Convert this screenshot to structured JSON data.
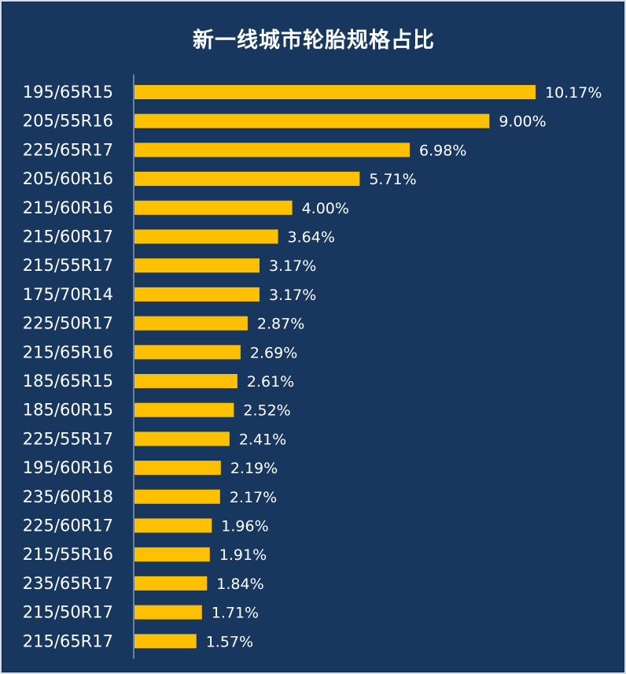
{
  "chart_data": {
    "type": "bar",
    "orientation": "horizontal",
    "title": "新一线城市轮胎规格占比",
    "categories": [
      "195/65R15",
      "205/55R16",
      "225/65R17",
      "205/60R16",
      "215/60R16",
      "215/60R17",
      "215/55R17",
      "175/70R14",
      "225/50R17",
      "215/65R16",
      "185/65R15",
      "185/60R15",
      "225/55R17",
      "195/60R16",
      "235/60R18",
      "225/60R17",
      "215/55R16",
      "235/65R17",
      "215/50R17",
      "215/65R17"
    ],
    "values": [
      10.17,
      9.0,
      6.98,
      5.71,
      4.0,
      3.64,
      3.17,
      3.17,
      2.87,
      2.69,
      2.61,
      2.52,
      2.41,
      2.19,
      2.17,
      1.96,
      1.91,
      1.84,
      1.71,
      1.57
    ],
    "value_labels": [
      "10.17%",
      "9.00%",
      "6.98%",
      "5.71%",
      "4.00%",
      "3.64%",
      "3.17%",
      "3.17%",
      "2.87%",
      "2.69%",
      "2.61%",
      "2.52%",
      "2.41%",
      "2.19%",
      "2.17%",
      "1.96%",
      "1.91%",
      "1.84%",
      "1.71%",
      "1.57%"
    ],
    "xlim": [
      0,
      10.17
    ],
    "xlabel": "",
    "ylabel": "",
    "grid": false,
    "legend": "none",
    "colors": {
      "bar": "#ffc000",
      "background": "#17375e",
      "text": "#ffffff",
      "axis": "#bfc8d2"
    }
  }
}
